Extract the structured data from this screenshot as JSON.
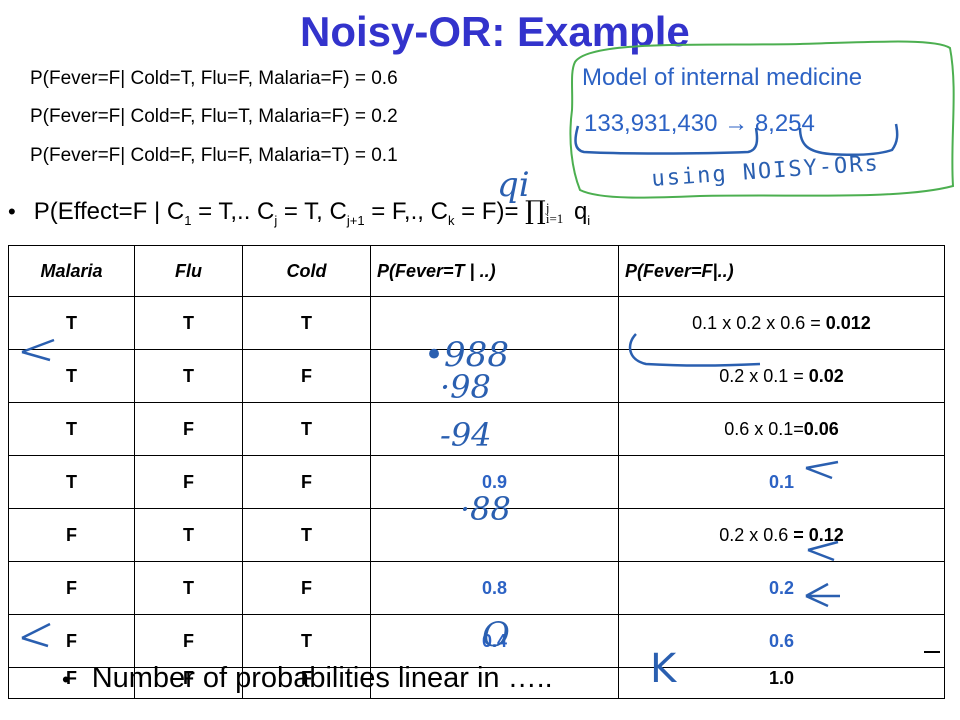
{
  "title": "Noisy-OR: Example",
  "conditionals": [
    "P(Fever=F| Cold=T, Flu=F, Malaria=F) = 0.6",
    "P(Fever=F| Cold=F, Flu=T, Malaria=F) = 0.2",
    "P(Fever=F| Cold=F, Flu=F, Malaria=T) = 0.1"
  ],
  "callout": {
    "model": "Model of internal medicine",
    "from": "133,931,430",
    "arrow": "→",
    "to": "8,254"
  },
  "formula": {
    "bullet": "•",
    "lhs": "P(Effect=F | C",
    "s1": "1",
    "p2": " = T,.. C",
    "s2": "j",
    "p3": " = T, C",
    "s3": "j+1",
    "p4": " = F,., C",
    "s4": "k",
    "p5": " = F)= ",
    "prod": "∏",
    "sup": "j",
    "sub": "i=1",
    "q": " q",
    "qsub": "i"
  },
  "table": {
    "headers": [
      "Malaria",
      "Flu",
      "Cold",
      "P(Fever=T | ..)",
      "P(Fever=F|..)"
    ],
    "rows": [
      {
        "malaria": "T",
        "flu": "T",
        "cold": "T",
        "pt": "",
        "pf_calc": "0.1 x 0.2 x 0.6 = ",
        "pf_bold": "0.012"
      },
      {
        "malaria": "T",
        "flu": "T",
        "cold": "F",
        "pt": "",
        "pf_calc": "0.2 x 0.1 = ",
        "pf_bold": "0.02"
      },
      {
        "malaria": "T",
        "flu": "F",
        "cold": "T",
        "pt": "",
        "pf_calc": "0.6 x 0.1=",
        "pf_bold": "0.06"
      },
      {
        "malaria": "T",
        "flu": "F",
        "cold": "F",
        "pt": "0.9",
        "pf_calc": "",
        "pf_bold": "0.1"
      },
      {
        "malaria": "F",
        "flu": "T",
        "cold": "T",
        "pt": "",
        "pf_calc": "0.2 x 0.6 ",
        "pf_bold": "= 0.12"
      },
      {
        "malaria": "F",
        "flu": "T",
        "cold": "F",
        "pt": "0.8",
        "pf_calc": "",
        "pf_bold": "0.2"
      },
      {
        "malaria": "F",
        "flu": "F",
        "cold": "T",
        "pt": "0.4",
        "pf_calc": "",
        "pf_bold": "0.6"
      },
      {
        "malaria": "F",
        "flu": "F",
        "cold": "F",
        "pt": "",
        "pf_calc": "",
        "pf_bold": "1.0"
      }
    ]
  },
  "handwriting": {
    "qi": "qi",
    "using": "using NOISY-ORs",
    "r1": "•988",
    "r2": "·98",
    "r3": "-94",
    "r5": "·88",
    "r8": "O",
    "k": "K"
  },
  "bottom": {
    "bullet": "•",
    "text": "Number of probabilities linear in ….."
  },
  "colors": {
    "title": "#3333cc",
    "callout_text": "#2c62c4",
    "ink_blue": "#2a5fb0",
    "ink_green": "#4caf50"
  }
}
